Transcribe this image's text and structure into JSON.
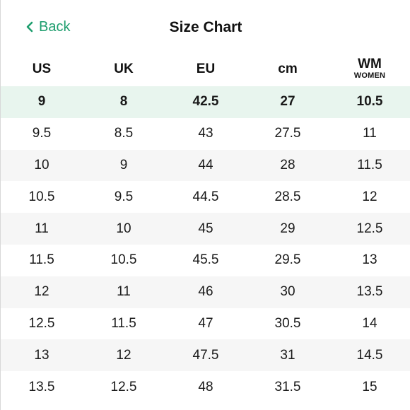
{
  "nav": {
    "back_label": "Back",
    "title": "Size Chart"
  },
  "headers": [
    {
      "label": "US",
      "sub": ""
    },
    {
      "label": "UK",
      "sub": ""
    },
    {
      "label": "EU",
      "sub": ""
    },
    {
      "label": "cm",
      "sub": ""
    },
    {
      "label": "WM",
      "sub": "WOMEN"
    }
  ],
  "rows": [
    {
      "cells": [
        "9",
        "8",
        "42.5",
        "27",
        "10.5"
      ],
      "highlighted": true
    },
    {
      "cells": [
        "9.5",
        "8.5",
        "43",
        "27.5",
        "11"
      ],
      "highlighted": false
    },
    {
      "cells": [
        "10",
        "9",
        "44",
        "28",
        "11.5"
      ],
      "highlighted": false
    },
    {
      "cells": [
        "10.5",
        "9.5",
        "44.5",
        "28.5",
        "12"
      ],
      "highlighted": false
    },
    {
      "cells": [
        "11",
        "10",
        "45",
        "29",
        "12.5"
      ],
      "highlighted": false
    },
    {
      "cells": [
        "11.5",
        "10.5",
        "45.5",
        "29.5",
        "13"
      ],
      "highlighted": false
    },
    {
      "cells": [
        "12",
        "11",
        "46",
        "30",
        "13.5"
      ],
      "highlighted": false
    },
    {
      "cells": [
        "12.5",
        "11.5",
        "47",
        "30.5",
        "14"
      ],
      "highlighted": false
    },
    {
      "cells": [
        "13",
        "12",
        "47.5",
        "31",
        "14.5"
      ],
      "highlighted": false
    },
    {
      "cells": [
        "13.5",
        "12.5",
        "48",
        "31.5",
        "15"
      ],
      "highlighted": false
    }
  ],
  "colors": {
    "accent": "#1e9e6e",
    "highlight_row": "#e8f5ee",
    "stripe_row": "#f6f6f6"
  },
  "icons": {
    "back": "chevron-left-icon"
  }
}
